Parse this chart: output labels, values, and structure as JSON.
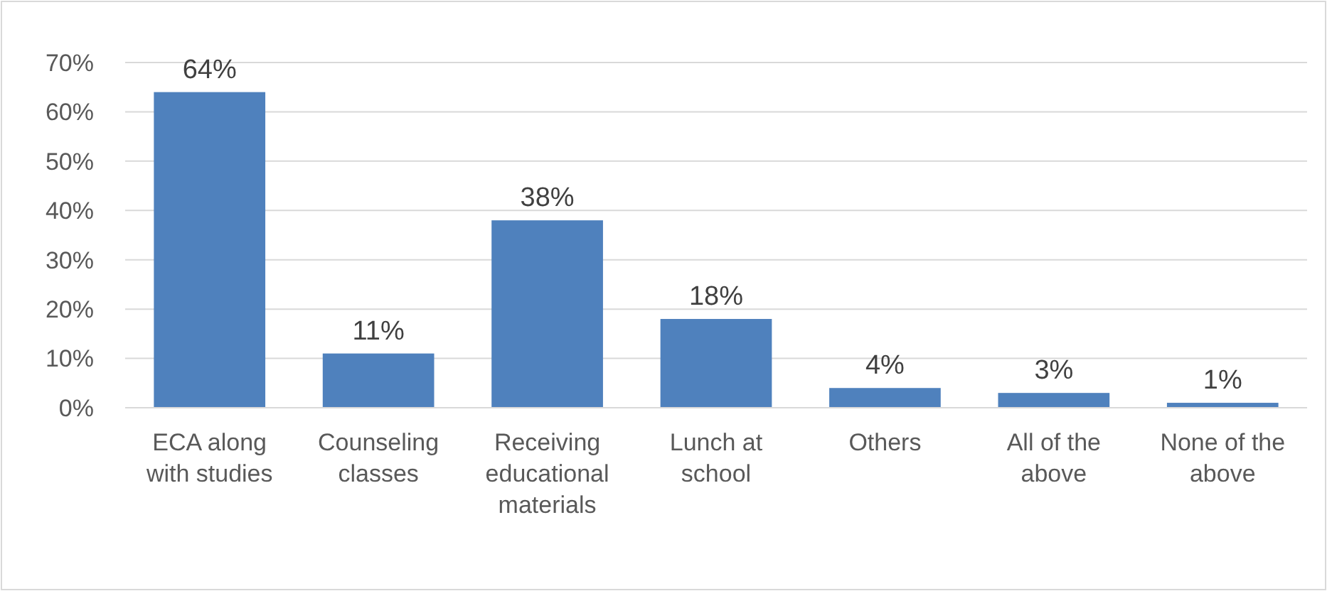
{
  "chart_data": {
    "type": "bar",
    "categories": [
      "ECA along with studies",
      "Counseling classes",
      "Receiving educational materials",
      "Lunch at school",
      "Others",
      "All of the above",
      "None of the above"
    ],
    "values": [
      64,
      11,
      38,
      18,
      4,
      3,
      1
    ],
    "value_labels": [
      "64%",
      "11%",
      "38%",
      "18%",
      "4%",
      "3%",
      "1%"
    ],
    "color": "#4f81bd",
    "ylim": [
      0,
      70
    ],
    "yticks": [
      {
        "value": 0,
        "label": "0%"
      },
      {
        "value": 10,
        "label": "10%"
      },
      {
        "value": 20,
        "label": "20%"
      },
      {
        "value": 30,
        "label": "30%"
      },
      {
        "value": 40,
        "label": "40%"
      },
      {
        "value": 50,
        "label": "50%"
      },
      {
        "value": 60,
        "label": "60%"
      },
      {
        "value": 70,
        "label": "70%"
      }
    ],
    "grid": "y"
  }
}
